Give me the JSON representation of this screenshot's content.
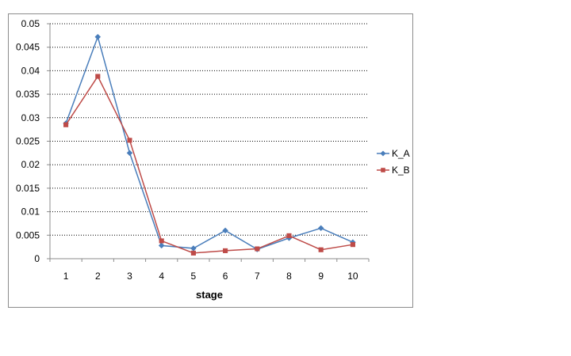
{
  "chart_data": {
    "type": "line",
    "title": "",
    "xlabel": "stage",
    "ylabel": "",
    "categories": [
      "1",
      "2",
      "3",
      "4",
      "5",
      "6",
      "7",
      "8",
      "9",
      "10"
    ],
    "y_ticks": [
      "0",
      "0.005",
      "0.01",
      "0.015",
      "0.02",
      "0.025",
      "0.03",
      "0.035",
      "0.04",
      "0.045",
      "0.05"
    ],
    "ylim": [
      0,
      0.05
    ],
    "grid": "horizontal dotted",
    "legend_position": "right",
    "series": [
      {
        "name": "K_A",
        "color": "#4a7ebb",
        "marker": "diamond",
        "values": [
          0.0288,
          0.0472,
          0.0225,
          0.0028,
          0.0022,
          0.006,
          0.002,
          0.0044,
          0.0065,
          0.0035
        ]
      },
      {
        "name": "K_B",
        "color": "#be4b48",
        "marker": "square",
        "values": [
          0.0285,
          0.0388,
          0.0252,
          0.0038,
          0.0012,
          0.0017,
          0.0021,
          0.0049,
          0.0019,
          0.003
        ]
      }
    ]
  }
}
